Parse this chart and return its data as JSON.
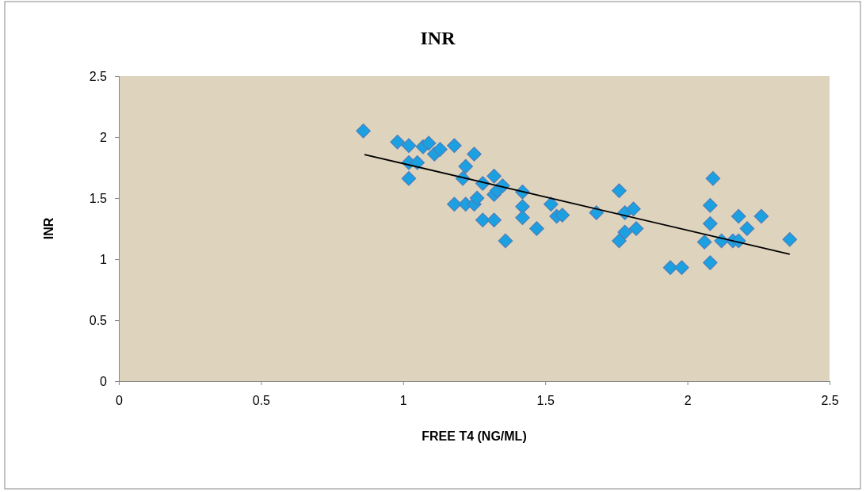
{
  "chart_data": {
    "type": "scatter",
    "title": "INR",
    "xlabel": "FREE T4 (NG/ML)",
    "ylabel": "INR",
    "xlim": [
      0,
      2.5
    ],
    "xticks": [
      0,
      0.5,
      1,
      1.5,
      2,
      2.5
    ],
    "ylim": [
      0,
      2.5
    ],
    "yticks": [
      0,
      0.5,
      1,
      1.5,
      2,
      2.5
    ],
    "grid": false,
    "marker": "diamond",
    "series": [
      {
        "color": "#1ba1e2",
        "x": [
          0.86,
          0.98,
          1.02,
          1.07,
          1.09,
          1.11,
          1.13,
          1.18,
          1.02,
          1.05,
          1.02,
          1.25,
          1.22,
          1.21,
          1.18,
          1.22,
          1.25,
          1.26,
          1.28,
          1.28,
          1.32,
          1.32,
          1.33,
          1.35,
          1.32,
          1.36,
          1.42,
          1.42,
          1.42,
          1.47,
          1.52,
          1.54,
          1.56,
          1.68,
          1.76,
          1.78,
          1.81,
          1.78,
          1.76,
          1.82,
          1.94,
          1.98,
          2.06,
          2.08,
          2.08,
          2.09,
          2.08,
          2.12,
          2.16,
          2.18,
          2.18,
          2.21,
          2.26,
          2.36
        ],
        "values": [
          2.05,
          1.96,
          1.93,
          1.92,
          1.95,
          1.86,
          1.9,
          1.93,
          1.79,
          1.79,
          1.66,
          1.86,
          1.76,
          1.66,
          1.45,
          1.45,
          1.45,
          1.5,
          1.62,
          1.32,
          1.68,
          1.53,
          1.56,
          1.6,
          1.32,
          1.15,
          1.55,
          1.43,
          1.34,
          1.25,
          1.45,
          1.35,
          1.36,
          1.38,
          1.56,
          1.38,
          1.41,
          1.22,
          1.15,
          1.25,
          0.93,
          0.93,
          1.14,
          1.29,
          1.44,
          1.66,
          0.97,
          1.15,
          1.15,
          1.15,
          1.35,
          1.25,
          1.35,
          1.16
        ]
      },
      {
        "type": "line",
        "color": "#000000",
        "marker": "none",
        "x": [
          0.864,
          2.36
        ],
        "values": [
          1.857,
          1.039
        ]
      }
    ]
  }
}
